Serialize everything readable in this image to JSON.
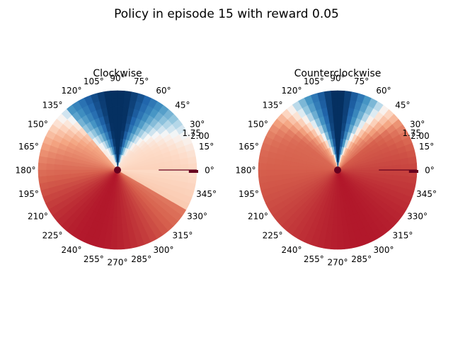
{
  "figure": {
    "suptitle": "Policy in episode 15 with reward 0.05"
  },
  "chart_data": [
    {
      "type": "heatmap",
      "projection": "polar",
      "title": "Clockwise",
      "theta_tick_labels": [
        "0°",
        "15°",
        "30°",
        "45°",
        "60°",
        "75°",
        "90°",
        "105°",
        "120°",
        "135°",
        "150°",
        "165°",
        "180°",
        "195°",
        "210°",
        "225°",
        "240°",
        "255°",
        "270°",
        "285°",
        "300°",
        "315°",
        "330°",
        "345°"
      ],
      "r_tick_labels": [
        "1.75",
        "2.00"
      ],
      "rlim": [
        0,
        2
      ],
      "colormap": "RdBu_r",
      "value_range": [
        0,
        1
      ],
      "description_values": {
        "dark_blue_at_theta_deg": 90,
        "dark_red_at_theta_deg": 250,
        "light_at_theta_deg": [
          0,
          120
        ]
      },
      "grid": false
    },
    {
      "type": "heatmap",
      "projection": "polar",
      "title": "Counterclockwise",
      "theta_tick_labels": [
        "0°",
        "15°",
        "30°",
        "45°",
        "60°",
        "75°",
        "90°",
        "105°",
        "120°",
        "135°",
        "150°",
        "165°",
        "180°",
        "195°",
        "210°",
        "225°",
        "240°",
        "255°",
        "270°",
        "285°",
        "300°",
        "315°",
        "330°",
        "345°"
      ],
      "r_tick_labels": [
        "1.75",
        "2.00"
      ],
      "rlim": [
        0,
        2
      ],
      "colormap": "RdBu_r",
      "value_range": [
        0,
        1
      ],
      "description_values": {
        "dark_blue_at_theta_deg": 90,
        "dark_red_at_theta_deg": 290,
        "light_at_theta_deg": [
          60,
          110
        ]
      },
      "grid": false
    }
  ]
}
